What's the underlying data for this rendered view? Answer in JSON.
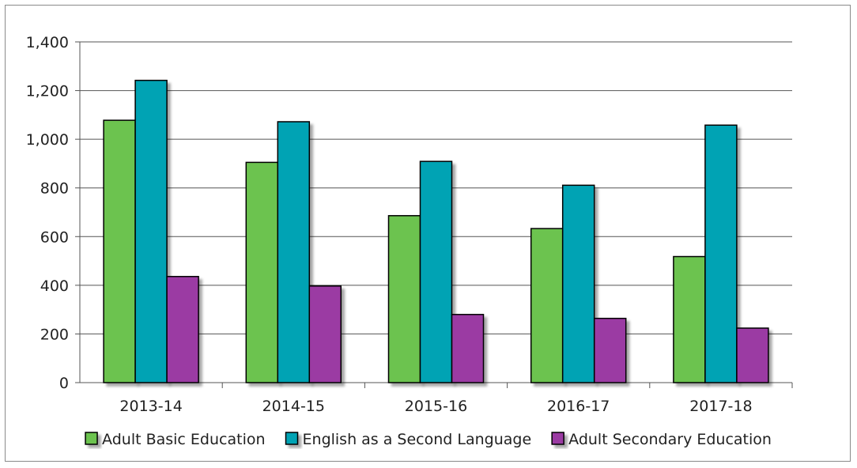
{
  "chart_data": {
    "type": "bar",
    "title": "",
    "xlabel": "",
    "ylabel": "",
    "categories": [
      "2013-14",
      "2014-15",
      "2015-16",
      "2016-17",
      "2017-18"
    ],
    "ylim": [
      0,
      1400
    ],
    "yticks": [
      0,
      200,
      400,
      600,
      800,
      1000,
      1200,
      1400
    ],
    "ytick_labels": [
      "0",
      "200",
      "400",
      "600",
      "800",
      "1,000",
      "1,200",
      "1,400"
    ],
    "grid": true,
    "legend_position": "bottom",
    "series": [
      {
        "name": "Adult Basic Education",
        "color": "#6cc34f",
        "values": [
          1078,
          905,
          686,
          633,
          518
        ]
      },
      {
        "name": "English as a Second Language",
        "color": "#04a3b4",
        "values": [
          1242,
          1072,
          909,
          811,
          1058
        ]
      },
      {
        "name": "Adult Secondary Education",
        "color": "#9b3aa3",
        "values": [
          436,
          397,
          280,
          264,
          224
        ]
      }
    ]
  }
}
